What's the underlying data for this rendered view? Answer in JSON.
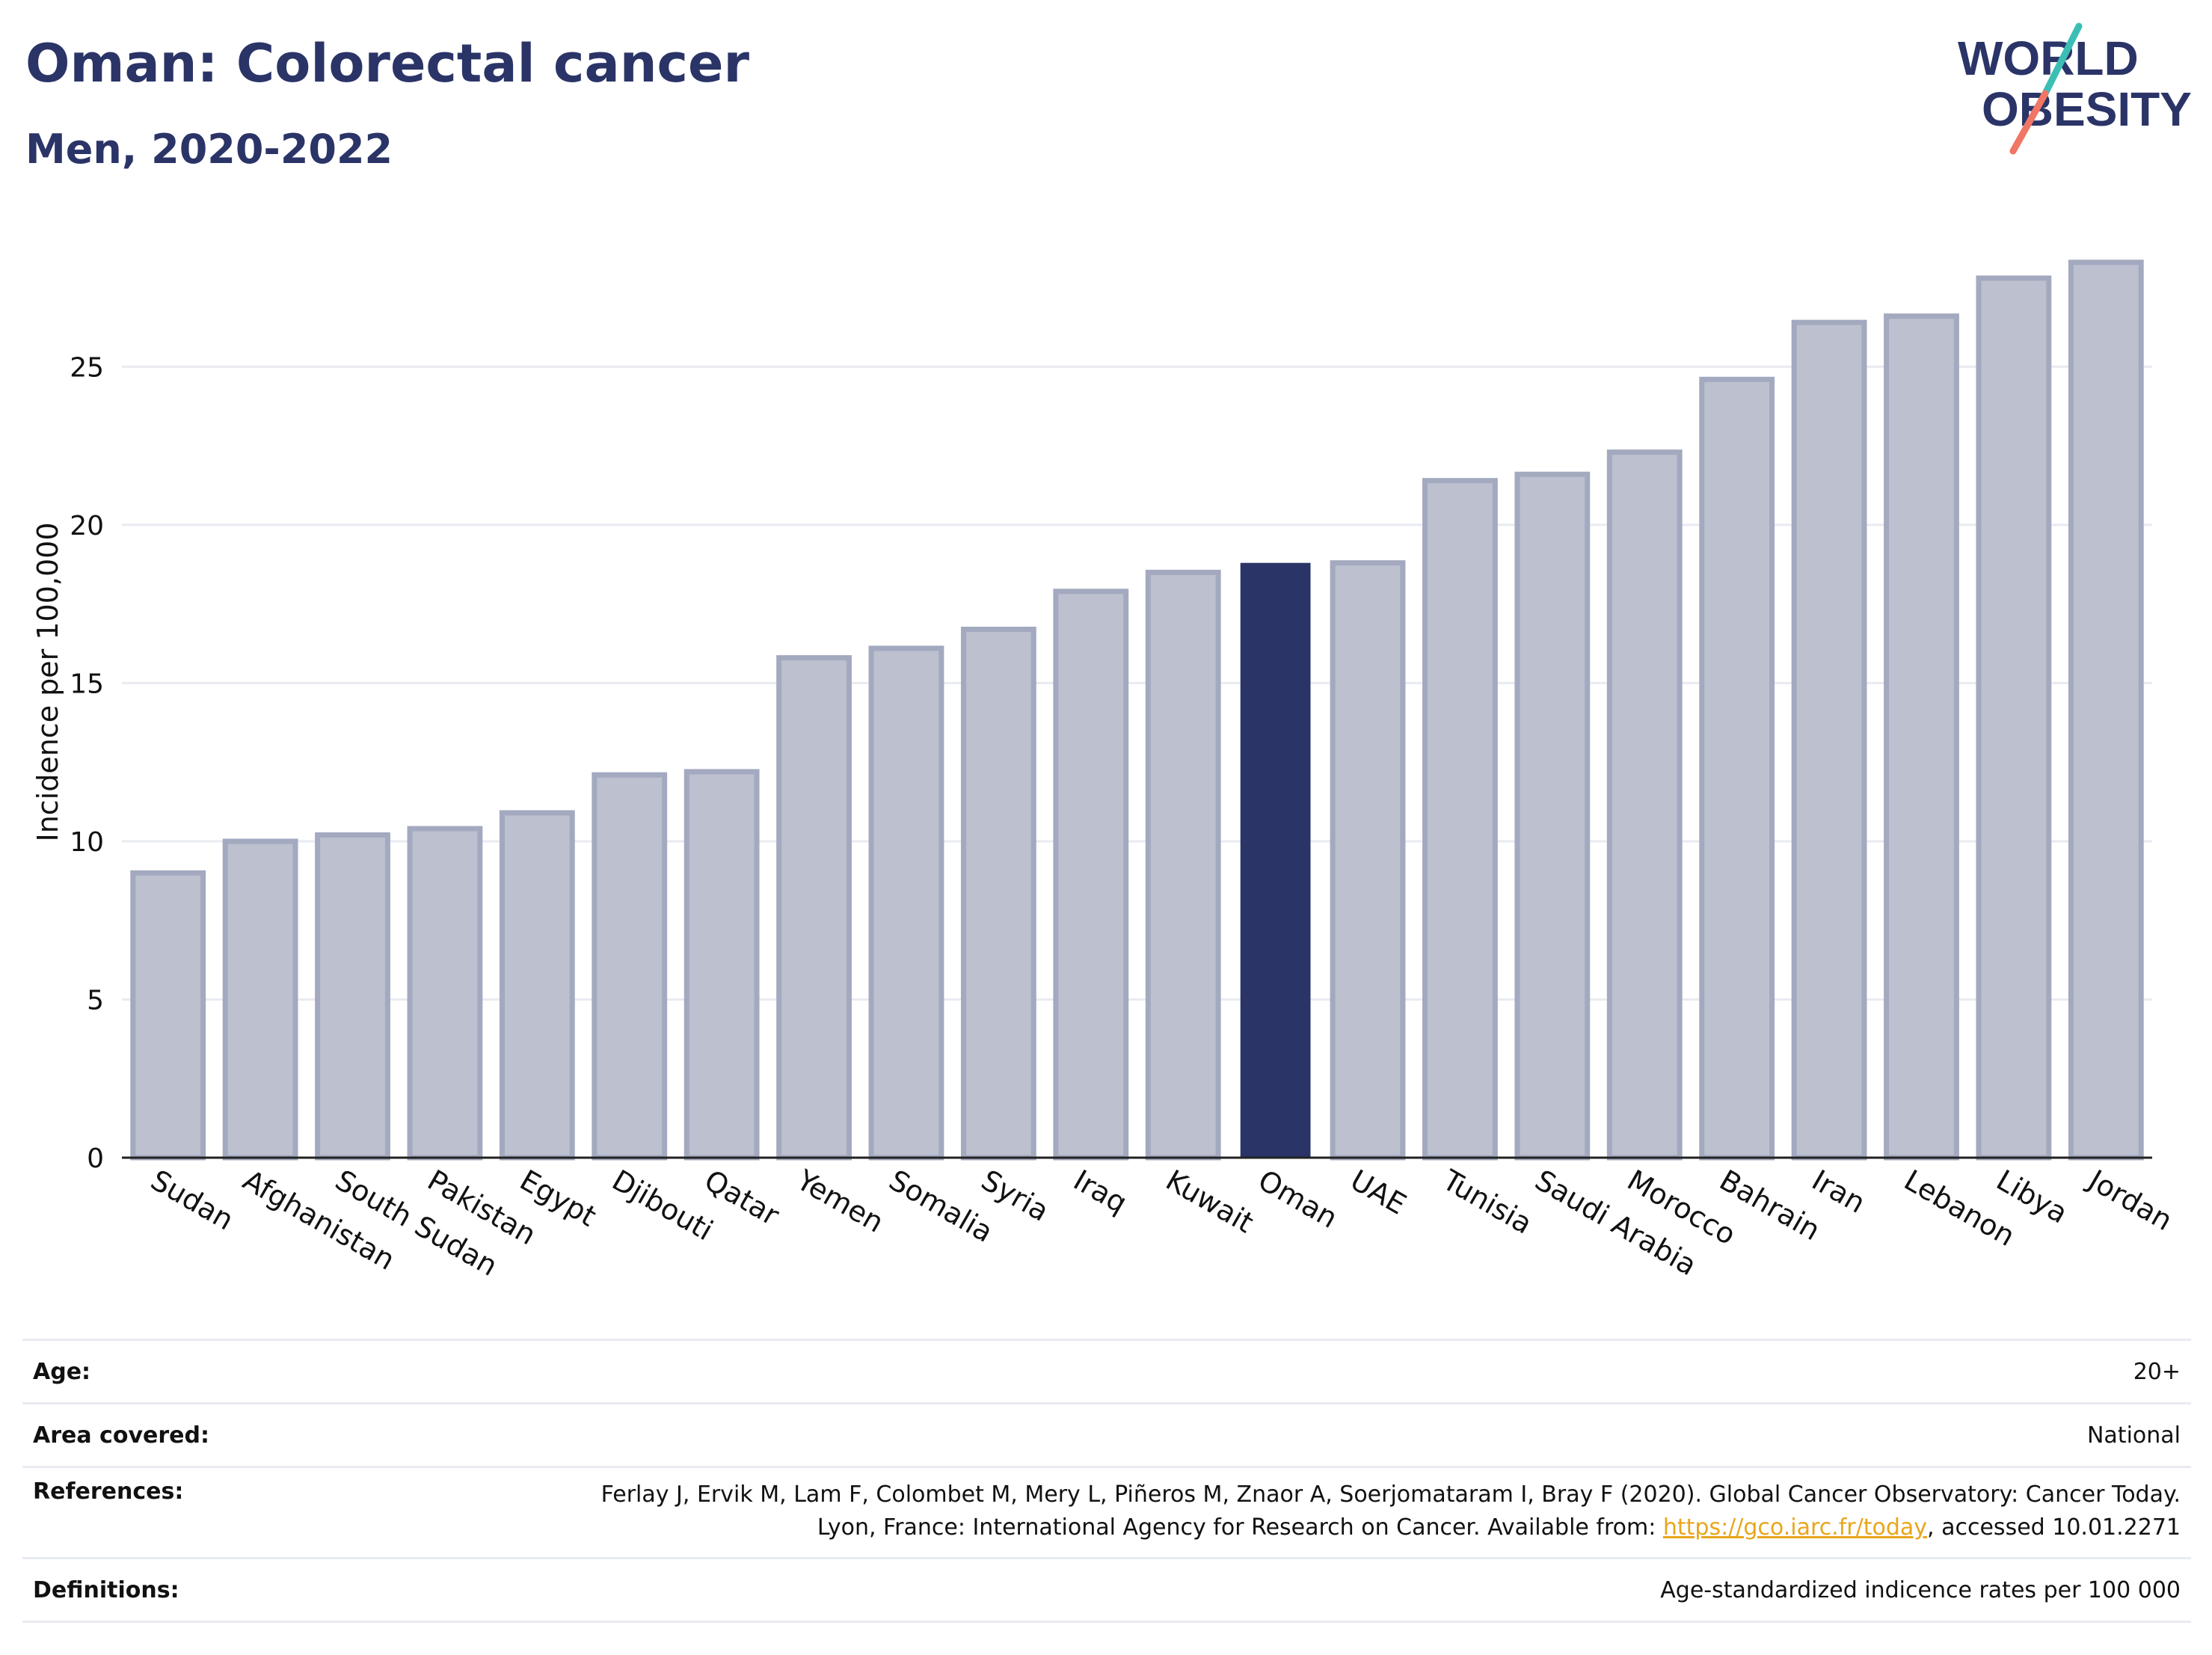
{
  "header": {
    "title": "Oman: Colorectal cancer",
    "subtitle": "Men, 2020-2022"
  },
  "logo": {
    "line1": "WORLD",
    "line2": "OBESITY"
  },
  "colors": {
    "highlight": "#2b3467",
    "bar_fill": "#bcc0cf",
    "bar_stroke": "#a3a9bf",
    "grid": "#e9ebf2",
    "logo_teal": "#3bbfb4",
    "logo_coral": "#f07666",
    "link": "#e8a61c"
  },
  "chart_data": {
    "type": "bar",
    "ylabel": "Incidence per 100,000",
    "xlabel": "",
    "ylim": [
      0,
      29.5
    ],
    "yticks": [
      0,
      5,
      10,
      15,
      20,
      25
    ],
    "grid": true,
    "highlight": "Oman",
    "categories": [
      "Sudan",
      "Afghanistan",
      "South Sudan",
      "Pakistan",
      "Egypt",
      "Djibouti",
      "Qatar",
      "Yemen",
      "Somalia",
      "Syria",
      "Iraq",
      "Kuwait",
      "Oman",
      "UAE",
      "Tunisia",
      "Saudi Arabia",
      "Morocco",
      "Bahrain",
      "Iran",
      "Lebanon",
      "Libya",
      "Jordan"
    ],
    "values": [
      9.0,
      10.0,
      10.2,
      10.4,
      10.9,
      12.1,
      12.2,
      15.8,
      16.1,
      16.7,
      17.9,
      18.5,
      18.8,
      18.8,
      21.4,
      21.6,
      22.3,
      24.6,
      26.4,
      26.6,
      27.8,
      28.3
    ]
  },
  "info": {
    "age": {
      "label": "Age:",
      "value": "20+"
    },
    "area": {
      "label": "Area covered:",
      "value": "National"
    },
    "references": {
      "label": "References:",
      "text_before": "Ferlay J, Ervik M, Lam F, Colombet M, Mery L, Piñeros M, Znaor A, Soerjomataram I, Bray F (2020). Global Cancer Observatory: Cancer Today. Lyon, France: International Agency for Research on Cancer. Available from: ",
      "link": "https://gco.iarc.fr/today",
      "text_after": ", accessed 10.01.2271"
    },
    "definitions": {
      "label": "Definitions:",
      "value": "Age-standardized indicence rates per 100 000"
    }
  }
}
